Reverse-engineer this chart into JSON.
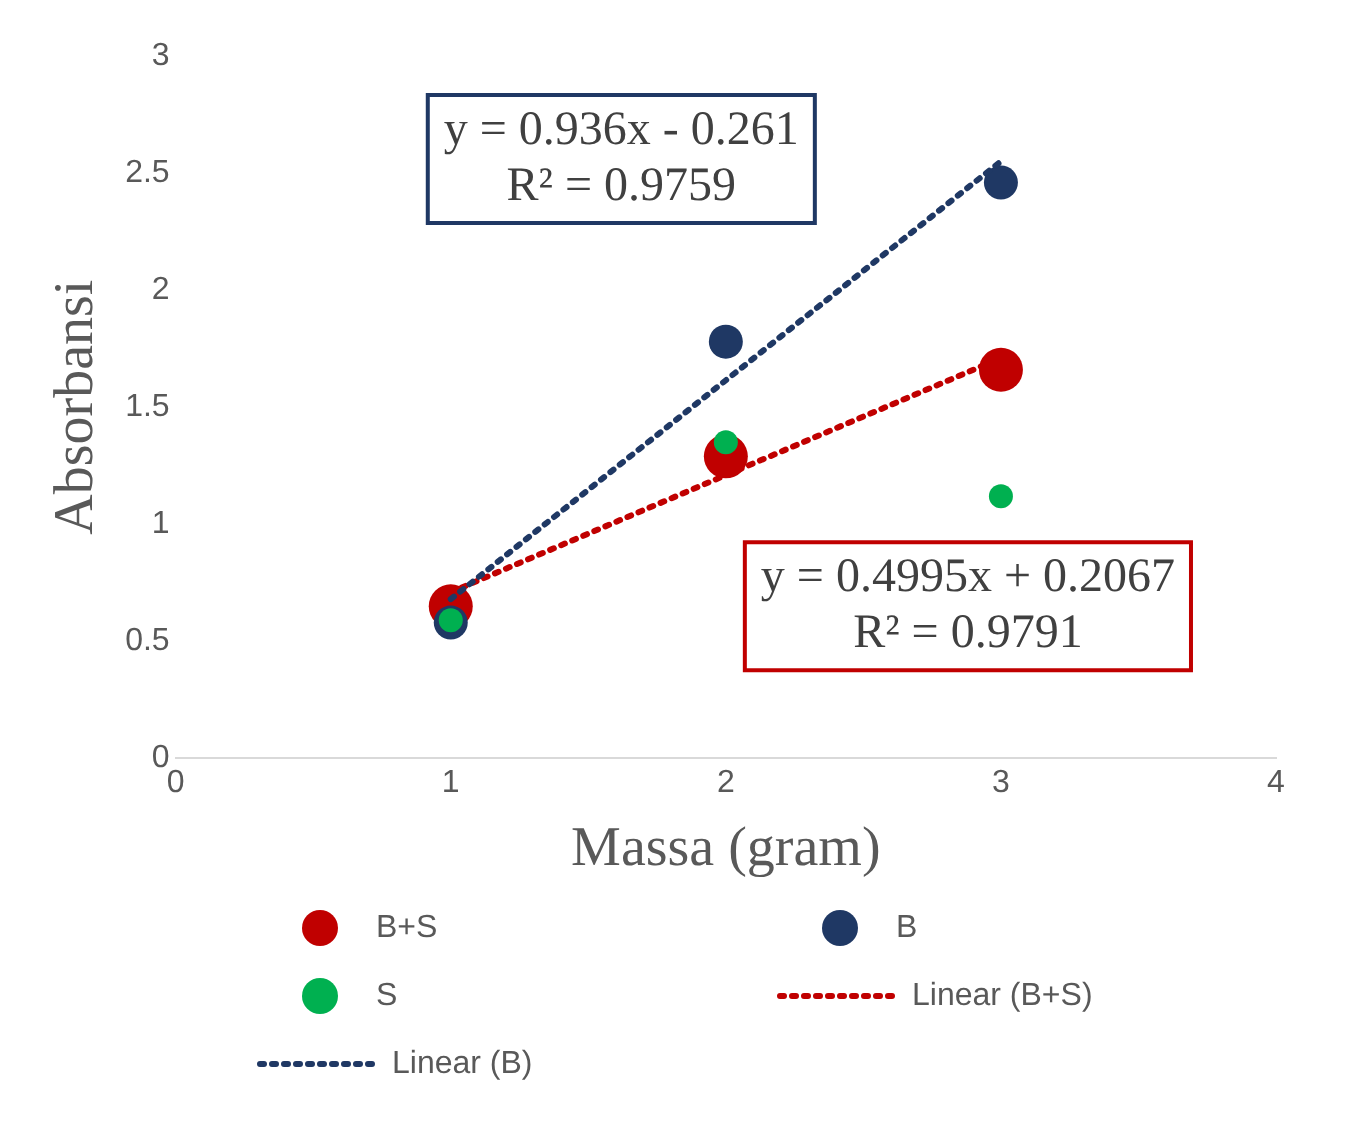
{
  "chart_data": {
    "type": "scatter",
    "xlabel": "Massa (gram)",
    "ylabel": "Absorbansi",
    "xlim": [
      0,
      4
    ],
    "xticks": [
      0,
      1,
      2,
      3,
      4
    ],
    "ylim": [
      0,
      3
    ],
    "yticks": [
      0,
      0.5,
      1,
      1.5,
      2,
      2.5,
      3
    ],
    "grid": false,
    "legend": "bottom",
    "marker": "circle",
    "series": [
      {
        "name": "B+S",
        "color": "#c00000",
        "x": [
          1,
          2,
          3
        ],
        "values": [
          0.65,
          1.29,
          1.66
        ]
      },
      {
        "name": "B",
        "color": "#1f3864",
        "x": [
          1,
          2,
          3
        ],
        "values": [
          0.58,
          1.78,
          2.46
        ]
      },
      {
        "name": "S",
        "color": "#00b050",
        "x": [
          1,
          2,
          3
        ],
        "values": [
          0.59,
          1.35,
          1.12
        ]
      },
      {
        "name": "Linear (B+S)",
        "type": "line",
        "line_style": "dotted",
        "marker": "none",
        "color": "#c00000",
        "x": [
          1,
          3
        ],
        "values": [
          0.71,
          1.71
        ]
      },
      {
        "name": "Linear (B)",
        "type": "line",
        "line_style": "dotted",
        "marker": "none",
        "color": "#1f3864",
        "x": [
          1,
          3
        ],
        "values": [
          0.68,
          2.55
        ]
      }
    ],
    "annotations": [
      "y = 0.936x - 0.261\nR² = 0.9759",
      "y = 0.4995x + 0.2067\nR² = 0.9791"
    ]
  }
}
